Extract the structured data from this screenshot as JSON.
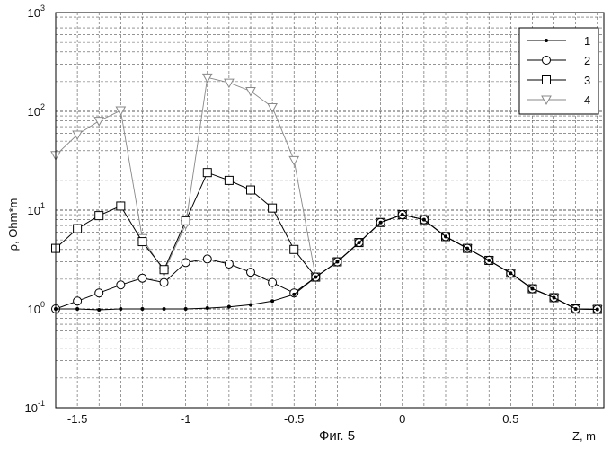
{
  "chart_data": {
    "type": "line",
    "caption": "Фиг. 5",
    "xlabel": "Z, m",
    "ylabel": "ρ, Ohm*m",
    "xlim": [
      -1.6,
      0.93
    ],
    "ylim": [
      0.1,
      1000
    ],
    "yscale": "log",
    "grid": true,
    "legend_position": "top-right",
    "x_ticks": [
      "-1.5",
      "-1",
      "-0.5",
      "0",
      "0.5"
    ],
    "x_tick_values": [
      -1.5,
      -1,
      -0.5,
      0,
      0.5
    ],
    "y_ticks": [
      {
        "base": "10",
        "exp": "-1",
        "value": 0.1
      },
      {
        "base": "10",
        "exp": "0",
        "value": 1
      },
      {
        "base": "10",
        "exp": "1",
        "value": 10
      },
      {
        "base": "10",
        "exp": "2",
        "value": 100
      },
      {
        "base": "10",
        "exp": "3",
        "value": 1000
      }
    ],
    "series": [
      {
        "name": "1",
        "marker": "dot",
        "color": "#000000",
        "points": [
          [
            -1.6,
            1.0
          ],
          [
            -1.5,
            1.0
          ],
          [
            -1.4,
            0.98
          ],
          [
            -1.3,
            1.0
          ],
          [
            -1.2,
            1.0
          ],
          [
            -1.1,
            1.0
          ],
          [
            -1.0,
            1.0
          ],
          [
            -0.9,
            1.02
          ],
          [
            -0.8,
            1.05
          ],
          [
            -0.7,
            1.1
          ],
          [
            -0.6,
            1.2
          ],
          [
            -0.5,
            1.4
          ],
          [
            -0.4,
            2.1
          ],
          [
            -0.3,
            3.0
          ],
          [
            -0.2,
            4.7
          ],
          [
            -0.1,
            7.5
          ],
          [
            0.0,
            9.0
          ],
          [
            0.1,
            8.0
          ],
          [
            0.2,
            5.4
          ],
          [
            0.3,
            4.1
          ],
          [
            0.4,
            3.1
          ],
          [
            0.5,
            2.3
          ],
          [
            0.6,
            1.6
          ],
          [
            0.7,
            1.3
          ],
          [
            0.8,
            1.0
          ],
          [
            0.9,
            0.99
          ]
        ]
      },
      {
        "name": "2",
        "marker": "circle",
        "color": "#000000",
        "points": [
          [
            -1.6,
            1.0
          ],
          [
            -1.5,
            1.2
          ],
          [
            -1.4,
            1.45
          ],
          [
            -1.3,
            1.75
          ],
          [
            -1.2,
            2.05
          ],
          [
            -1.1,
            1.85
          ],
          [
            -1.0,
            2.95
          ],
          [
            -0.9,
            3.2
          ],
          [
            -0.8,
            2.85
          ],
          [
            -0.7,
            2.35
          ],
          [
            -0.6,
            1.85
          ],
          [
            -0.5,
            1.45
          ],
          [
            -0.4,
            2.1
          ],
          [
            -0.3,
            3.0
          ],
          [
            -0.2,
            4.7
          ],
          [
            -0.1,
            7.5
          ],
          [
            0.0,
            9.0
          ],
          [
            0.1,
            8.0
          ],
          [
            0.2,
            5.4
          ],
          [
            0.3,
            4.1
          ],
          [
            0.4,
            3.1
          ],
          [
            0.5,
            2.3
          ],
          [
            0.6,
            1.6
          ],
          [
            0.7,
            1.3
          ],
          [
            0.8,
            1.0
          ],
          [
            0.9,
            0.99
          ]
        ]
      },
      {
        "name": "3",
        "marker": "square",
        "color": "#000000",
        "points": [
          [
            -1.6,
            4.1
          ],
          [
            -1.5,
            6.5
          ],
          [
            -1.4,
            8.8
          ],
          [
            -1.3,
            11.0
          ],
          [
            -1.2,
            4.8
          ],
          [
            -1.1,
            2.5
          ],
          [
            -1.0,
            7.8
          ],
          [
            -0.9,
            24.0
          ],
          [
            -0.8,
            20.0
          ],
          [
            -0.7,
            16.0
          ],
          [
            -0.6,
            10.5
          ],
          [
            -0.5,
            4.0
          ],
          [
            -0.4,
            2.1
          ],
          [
            -0.3,
            3.0
          ],
          [
            -0.2,
            4.7
          ],
          [
            -0.1,
            7.5
          ],
          [
            0.0,
            9.0
          ],
          [
            0.1,
            8.0
          ],
          [
            0.2,
            5.4
          ],
          [
            0.3,
            4.1
          ],
          [
            0.4,
            3.1
          ],
          [
            0.5,
            2.3
          ],
          [
            0.6,
            1.6
          ],
          [
            0.7,
            1.3
          ],
          [
            0.8,
            1.0
          ],
          [
            0.9,
            0.99
          ]
        ]
      },
      {
        "name": "4",
        "marker": "triangle-down",
        "color": "#888888",
        "points": [
          [
            -1.6,
            36
          ],
          [
            -1.5,
            58
          ],
          [
            -1.4,
            80
          ],
          [
            -1.3,
            102
          ],
          [
            -1.2,
            5.2
          ],
          [
            -1.1,
            2.4
          ],
          [
            -1.0,
            7.2
          ],
          [
            -0.9,
            220
          ],
          [
            -0.8,
            195
          ],
          [
            -0.7,
            160
          ],
          [
            -0.6,
            110
          ],
          [
            -0.5,
            32
          ],
          [
            -0.4,
            2.1
          ],
          [
            -0.3,
            3.0
          ],
          [
            -0.2,
            4.7
          ],
          [
            -0.1,
            7.5
          ],
          [
            0.0,
            9.0
          ],
          [
            0.1,
            8.0
          ],
          [
            0.2,
            5.4
          ],
          [
            0.3,
            4.1
          ],
          [
            0.4,
            3.1
          ],
          [
            0.5,
            2.3
          ],
          [
            0.6,
            1.6
          ],
          [
            0.7,
            1.3
          ],
          [
            0.8,
            1.0
          ],
          [
            0.9,
            0.99
          ]
        ]
      }
    ]
  }
}
